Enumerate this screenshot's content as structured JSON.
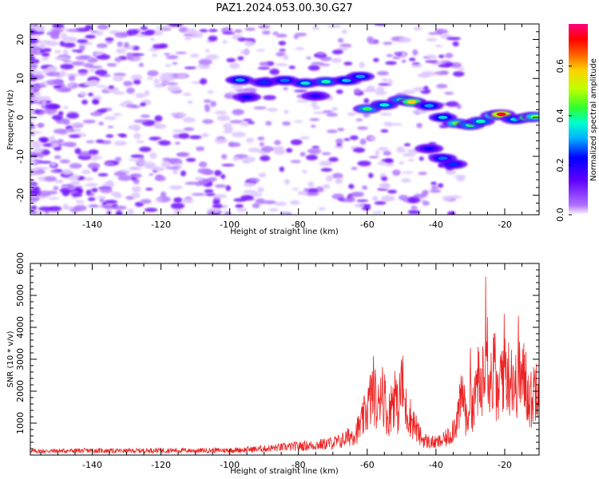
{
  "title": "PAZ1.2024.053.00.30.G27",
  "chart_data": [
    {
      "type": "heatmap",
      "xlabel": "Height of straight line (km)",
      "ylabel": "Frequency (Hz)",
      "xlim": [
        -158,
        -10
      ],
      "ylim": [
        -25,
        24
      ],
      "xticks": [
        -140,
        -120,
        -100,
        -80,
        -60,
        -40,
        -20
      ],
      "yticks": [
        -20,
        -10,
        0,
        10,
        20
      ],
      "colorbar": {
        "label": "Normalized spectral amplitude",
        "range": [
          0,
          0.77
        ],
        "ticks": [
          0.0,
          0.2,
          0.4,
          0.6
        ],
        "colors": [
          "#ffffff",
          "#b070ff",
          "#6000ff",
          "#0000ff",
          "#00b0ff",
          "#00ffd0",
          "#30ff30",
          "#c0ff00",
          "#ffd000",
          "#ff6000",
          "#ff0000",
          "#ff0080"
        ]
      },
      "features": [
        {
          "x": -97,
          "y": 9.6,
          "value": 0.3
        },
        {
          "x": -90,
          "y": 9.0,
          "value": 0.25
        },
        {
          "x": -84,
          "y": 9.5,
          "value": 0.28
        },
        {
          "x": -78,
          "y": 8.8,
          "value": 0.35
        },
        {
          "x": -72,
          "y": 9.2,
          "value": 0.38
        },
        {
          "x": -66,
          "y": 9.5,
          "value": 0.33
        },
        {
          "x": -62,
          "y": 10.5,
          "value": 0.3
        },
        {
          "x": -95,
          "y": 5.2,
          "value": 0.22
        },
        {
          "x": -75,
          "y": 5.5,
          "value": 0.2
        },
        {
          "x": -60,
          "y": 2.2,
          "value": 0.42
        },
        {
          "x": -55,
          "y": 3.2,
          "value": 0.36
        },
        {
          "x": -50,
          "y": 4.5,
          "value": 0.4
        },
        {
          "x": -47,
          "y": 4.0,
          "value": 0.58
        },
        {
          "x": -42,
          "y": 3.0,
          "value": 0.3
        },
        {
          "x": -38,
          "y": 0.0,
          "value": 0.33
        },
        {
          "x": -34,
          "y": -1.5,
          "value": 0.45
        },
        {
          "x": -30,
          "y": -2.0,
          "value": 0.4
        },
        {
          "x": -27,
          "y": -1.0,
          "value": 0.38
        },
        {
          "x": -23,
          "y": 0.5,
          "value": 0.5
        },
        {
          "x": -21,
          "y": 0.8,
          "value": 0.72
        },
        {
          "x": -17,
          "y": -0.5,
          "value": 0.35
        },
        {
          "x": -13,
          "y": 0.0,
          "value": 0.58
        },
        {
          "x": -11,
          "y": 0.2,
          "value": 0.48
        },
        {
          "x": -42,
          "y": -8.0,
          "value": 0.22
        },
        {
          "x": -38,
          "y": -10.5,
          "value": 0.28
        },
        {
          "x": -35,
          "y": -12.0,
          "value": 0.25
        }
      ]
    },
    {
      "type": "line",
      "xlabel": "Height of straight line (km)",
      "ylabel": "SNR (10 * v/v)",
      "xlim": [
        -158,
        -10
      ],
      "ylim": [
        0,
        6000
      ],
      "xticks": [
        -140,
        -120,
        -100,
        -80,
        -60,
        -40,
        -20
      ],
      "yticks": [
        1000,
        2000,
        3000,
        4000,
        5000,
        6000
      ],
      "series": [
        {
          "color": "#ee2222",
          "x": [
            -158,
            -150,
            -140,
            -130,
            -120,
            -110,
            -100,
            -95,
            -90,
            -85,
            -80,
            -76,
            -72,
            -68,
            -64,
            -62,
            -60,
            -58,
            -57,
            -56,
            -55,
            -54,
            -53,
            -52,
            -51,
            -50,
            -49,
            -48,
            -47,
            -46,
            -45,
            -44,
            -42,
            -40,
            -38,
            -36,
            -34,
            -33,
            -32,
            -31,
            -30,
            -29,
            -28,
            -27,
            -26,
            -25.4,
            -25,
            -24,
            -23,
            -22,
            -21,
            -20,
            -19,
            -18,
            -17,
            -16,
            -15,
            -14,
            -13,
            -12,
            -11,
            -10
          ],
          "y": [
            120,
            130,
            140,
            130,
            150,
            140,
            150,
            170,
            200,
            240,
            280,
            300,
            350,
            420,
            650,
            900,
            1450,
            2100,
            1200,
            2400,
            1800,
            1100,
            1600,
            2000,
            1300,
            2400,
            1500,
            1300,
            1100,
            900,
            650,
            500,
            400,
            380,
            450,
            600,
            1100,
            1500,
            2000,
            900,
            2200,
            1300,
            2500,
            1700,
            3300,
            6000,
            3200,
            2300,
            2800,
            1600,
            2600,
            3000,
            2400,
            2800,
            1900,
            2900,
            2200,
            2500,
            1800,
            1700,
            2300,
            2800
          ]
        }
      ]
    }
  ]
}
